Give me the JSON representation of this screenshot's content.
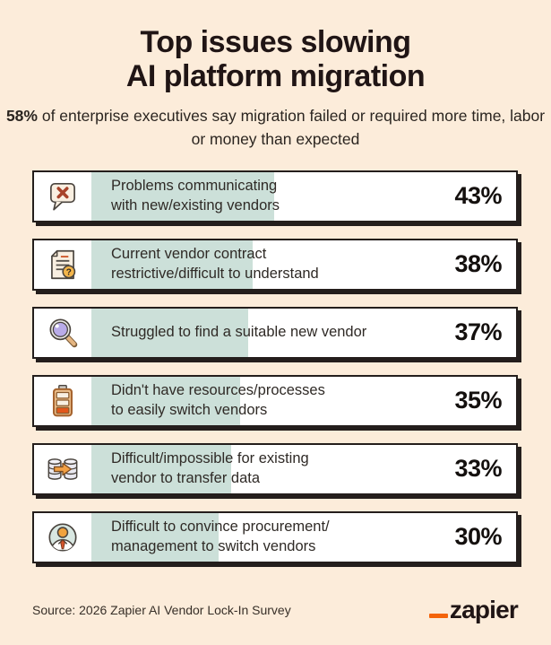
{
  "header": {
    "title_line1": "Top issues slowing",
    "title_line2": "AI platform migration",
    "subtitle_bold": "58%",
    "subtitle_rest": " of enterprise executives say migration failed or required more time, labor or money than expected"
  },
  "chart_data": {
    "type": "bar",
    "orientation": "horizontal",
    "title": "Top issues slowing AI platform migration",
    "subtitle": "58% of enterprise executives say migration failed or required more time, labor or money than expected",
    "categories": [
      "Problems communicating with new/existing vendors",
      "Current vendor contract restrictive/difficult to understand",
      "Struggled to find a suitable new vendor",
      "Didn't have resources/processes to easily switch vendors",
      "Difficult/impossible for existing vendor to transfer data",
      "Difficult to convince procurement/management to switch vendors"
    ],
    "values": [
      43,
      38,
      37,
      35,
      33,
      30
    ],
    "unit": "%",
    "xlim": [
      0,
      100
    ],
    "bar_color": "#cce0d9",
    "legend": "none",
    "grid": false
  },
  "rows": [
    {
      "icon": "chat-error-icon",
      "label_line1": "Problems communicating",
      "label_line2": "with new/existing vendors",
      "value": 43,
      "value_label": "43%"
    },
    {
      "icon": "contract-question-icon",
      "label_line1": "Current vendor contract",
      "label_line2": "restrictive/difficult to understand",
      "value": 38,
      "value_label": "38%"
    },
    {
      "icon": "magnifier-icon",
      "label_line1": "Struggled to find a suitable new vendor",
      "label_line2": "",
      "value": 37,
      "value_label": "37%"
    },
    {
      "icon": "low-battery-icon",
      "label_line1": "Didn't have resources/processes",
      "label_line2": "to easily switch vendors",
      "value": 35,
      "value_label": "35%"
    },
    {
      "icon": "data-transfer-icon",
      "label_line1": "Difficult/impossible for existing",
      "label_line2": "vendor to transfer data",
      "value": 33,
      "value_label": "33%"
    },
    {
      "icon": "person-icon",
      "label_line1": "Difficult to convince procurement/",
      "label_line2": "management to switch vendors",
      "value": 30,
      "value_label": "30%"
    }
  ],
  "footer": {
    "source": "Source: 2026 Zapier AI Vendor Lock-In Survey",
    "logo_text": "zapier"
  },
  "colors": {
    "background": "#fcecda",
    "bar_teal": "#cce0d9",
    "card_border": "#241e1c",
    "zapier_orange": "#f4640a",
    "accent_rust": "#a8432a"
  }
}
